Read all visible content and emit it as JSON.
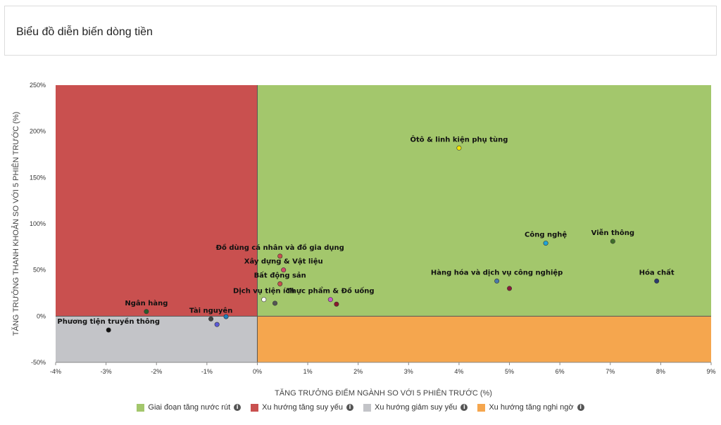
{
  "header": {
    "title": "Biểu đồ diễn biến dòng tiền"
  },
  "legend": [
    {
      "label": "Giai đoạn tăng nước rút",
      "color": "#a3c76c"
    },
    {
      "label": "Xu hướng tăng suy yếu",
      "color": "#c9504f"
    },
    {
      "label": "Xu hướng giảm suy yếu",
      "color": "#c3c4c8"
    },
    {
      "label": "Xu hướng tăng nghi ngờ",
      "color": "#f5a64e"
    }
  ],
  "chart_data": {
    "type": "scatter",
    "xlabel": "TĂNG TRƯỞNG ĐIỂM NGÀNH SO VỚI 5 PHIÊN TRƯỚC (%)",
    "ylabel": "TĂNG TRƯỞNG THANH KHOẢN SO VỚI 5 PHIÊN TRƯỚC (%)",
    "xlim": [
      -4,
      9
    ],
    "ylim": [
      -50,
      250
    ],
    "x_ticks": [
      "-4%",
      "-3%",
      "-2%",
      "-1%",
      "0%",
      "1%",
      "2%",
      "3%",
      "4%",
      "5%",
      "6%",
      "7%",
      "8%",
      "9%"
    ],
    "y_ticks": [
      "250%",
      "200%",
      "150%",
      "100%",
      "50%",
      "0%",
      "-50%"
    ],
    "quadrant_colors": {
      "top_right": "#a3c76c",
      "top_left": "#c9504f",
      "bottom_left": "#c3c4c8",
      "bottom_right": "#f5a64e"
    },
    "points": [
      {
        "name": "Ôtô & linh kiện phụ tùng",
        "x": 4.0,
        "y": 182,
        "color": "#f2e600"
      },
      {
        "name": "Công nghệ",
        "x": 5.72,
        "y": 79,
        "color": "#1fa5d8"
      },
      {
        "name": "Viễn thông",
        "x": 7.05,
        "y": 81,
        "color": "#3f6e2a"
      },
      {
        "name": "Hóa chất",
        "x": 7.92,
        "y": 38,
        "color": "#2b3b6e"
      },
      {
        "name": "Hàng hóa và dịch vụ công nghiệp",
        "x": 4.75,
        "y": 38,
        "color": "#4a78a8"
      },
      {
        "name": "",
        "x": 5.0,
        "y": 30,
        "color": "#8a1a3a"
      },
      {
        "name": "Thực phẩm & Đồ uống",
        "x": 1.45,
        "y": 18,
        "color": "#c45ac9"
      },
      {
        "name": "",
        "x": 1.57,
        "y": 13,
        "color": "#8a1a2a"
      },
      {
        "name": "Đồ dùng cá nhân và đồ gia dụng",
        "x": 0.45,
        "y": 65,
        "color": "#c9504f"
      },
      {
        "name": "Xây dựng & Vật liệu",
        "x": 0.52,
        "y": 50,
        "color": "#d1486a"
      },
      {
        "name": "Bất động sản",
        "x": 0.45,
        "y": 35,
        "color": "#c9504f"
      },
      {
        "name": "Dịch vụ tiện ích",
        "x": 0.13,
        "y": 18,
        "color": "#ffffff"
      },
      {
        "name": "",
        "x": 0.35,
        "y": 14,
        "color": "#555555"
      },
      {
        "name": "Ngân hàng",
        "x": -2.2,
        "y": 5,
        "color": "#2a5a2a"
      },
      {
        "name": "Tài nguyên",
        "x": -0.92,
        "y": -3,
        "color": "#444444"
      },
      {
        "name": "",
        "x": -0.62,
        "y": -0.5,
        "color": "#1d7fbf"
      },
      {
        "name": "",
        "x": -0.8,
        "y": -9,
        "color": "#5a5ad8"
      },
      {
        "name": "Phương tiện truyền thông",
        "x": -2.95,
        "y": -15,
        "color": "#111111"
      }
    ]
  }
}
